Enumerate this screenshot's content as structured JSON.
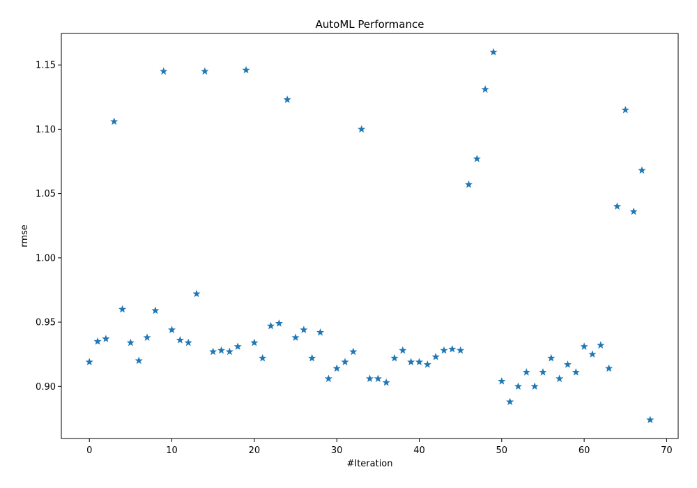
{
  "chart_data": {
    "type": "scatter",
    "title": "AutoML Performance",
    "xlabel": "#Iteration",
    "ylabel": "rmse",
    "xlim": [
      -3.4,
      71.4
    ],
    "ylim": [
      0.8595,
      1.1745
    ],
    "xticks": [
      0,
      10,
      20,
      30,
      40,
      50,
      60,
      70
    ],
    "yticks": [
      0.9,
      0.95,
      1.0,
      1.05,
      1.1,
      1.15
    ],
    "ytick_labels": [
      "0.90",
      "0.95",
      "1.00",
      "1.05",
      "1.10",
      "1.15"
    ],
    "marker": "star",
    "color": "#1f77b4",
    "grid": false,
    "x": [
      0,
      1,
      2,
      3,
      4,
      5,
      6,
      7,
      8,
      9,
      10,
      11,
      12,
      13,
      14,
      15,
      16,
      17,
      18,
      19,
      20,
      21,
      22,
      23,
      24,
      25,
      26,
      27,
      28,
      29,
      30,
      31,
      32,
      33,
      34,
      35,
      36,
      37,
      38,
      39,
      40,
      41,
      42,
      43,
      44,
      45,
      46,
      47,
      48,
      49,
      50,
      51,
      52,
      53,
      54,
      55,
      56,
      57,
      58,
      59,
      60,
      61,
      62,
      63,
      64,
      65,
      66,
      67,
      68
    ],
    "y": [
      0.919,
      0.935,
      0.937,
      1.106,
      0.96,
      0.934,
      0.92,
      0.938,
      0.959,
      1.145,
      0.944,
      0.936,
      0.934,
      0.972,
      1.145,
      0.927,
      0.928,
      0.927,
      0.931,
      1.146,
      0.934,
      0.922,
      0.947,
      0.949,
      1.123,
      0.938,
      0.944,
      0.922,
      0.942,
      0.906,
      0.914,
      0.919,
      0.927,
      1.1,
      0.906,
      0.906,
      0.903,
      0.922,
      0.928,
      0.919,
      0.919,
      0.917,
      0.923,
      0.928,
      0.929,
      0.928,
      1.057,
      1.077,
      1.131,
      1.16,
      0.904,
      0.888,
      0.9,
      0.911,
      0.9,
      0.911,
      0.922,
      0.906,
      0.917,
      0.911,
      0.931,
      0.925,
      0.932,
      0.914,
      1.04,
      1.115,
      1.036,
      1.068,
      0.874
    ]
  }
}
